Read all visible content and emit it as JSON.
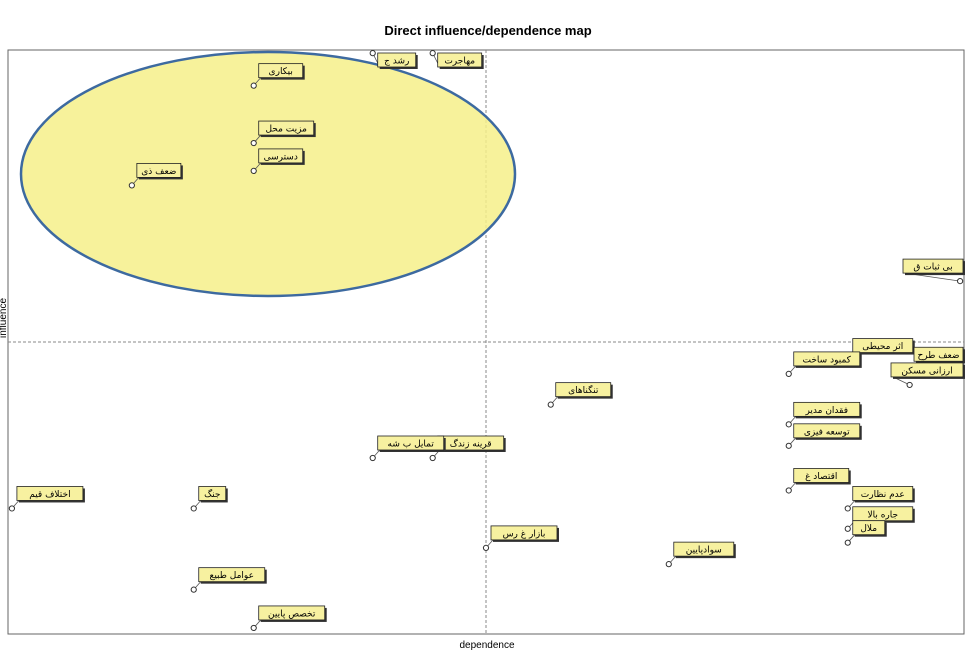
{
  "chart_data": {
    "type": "scatter",
    "title": "Direct influence/dependence map",
    "xlabel": "dependence",
    "ylabel": "influence",
    "xlim": [
      0,
      100
    ],
    "ylim": [
      0,
      100
    ],
    "x_divider": 50,
    "y_divider": 50,
    "grid": false,
    "highlight": {
      "shape": "ellipse",
      "fill": "#f6f08a",
      "stroke": "#3d6aa0",
      "quadrant": "top-left"
    },
    "points": [
      {
        "label": "مهاجرت",
        "x": 44.4,
        "y": 99.8
      },
      {
        "label": "رشد ج",
        "x": 38.1,
        "y": 99.8
      },
      {
        "label": "بیکاری",
        "x": 25.6,
        "y": 94.2
      },
      {
        "label": "مزیت محل",
        "x": 25.6,
        "y": 84.3
      },
      {
        "label": "دسترسی",
        "x": 25.6,
        "y": 79.5
      },
      {
        "label": "ضعف ذی",
        "x": 12.8,
        "y": 77.0
      },
      {
        "label": "بی ثبات ق",
        "x": 99.8,
        "y": 60.5
      },
      {
        "label": "اثر محیطی",
        "x": 88.0,
        "y": 46.8
      },
      {
        "label": "ضعف طرح",
        "x": 99.8,
        "y": 45.3
      },
      {
        "label": "کمبود ساخت",
        "x": 81.8,
        "y": 44.5
      },
      {
        "label": "ارزانی مسکن",
        "x": 94.5,
        "y": 42.6
      },
      {
        "label": "تنگناهای",
        "x": 56.8,
        "y": 39.2
      },
      {
        "label": "فقدان مدیر",
        "x": 81.8,
        "y": 35.8
      },
      {
        "label": "توسعه فیزی",
        "x": 81.8,
        "y": 32.1
      },
      {
        "label": "قرینه زندگ",
        "x": 44.4,
        "y": 30.0
      },
      {
        "label": "تمایل ب شه",
        "x": 38.1,
        "y": 30.0
      },
      {
        "label": "اقتصاد غ",
        "x": 81.8,
        "y": 24.4
      },
      {
        "label": "عدم نظارت",
        "x": 88.0,
        "y": 21.3
      },
      {
        "label": "اختلاف قیم",
        "x": 0.2,
        "y": 21.3
      },
      {
        "label": "جنگ",
        "x": 19.3,
        "y": 21.3
      },
      {
        "label": "جاره بالا",
        "x": 88.0,
        "y": 17.8
      },
      {
        "label": "ملال",
        "x": 88.0,
        "y": 15.4
      },
      {
        "label": "بازار غ رس",
        "x": 50.0,
        "y": 14.5
      },
      {
        "label": "سوادپایین",
        "x": 69.2,
        "y": 11.7
      },
      {
        "label": "عوامل طبیع",
        "x": 19.3,
        "y": 7.3
      },
      {
        "label": "تخصص پایین",
        "x": 25.6,
        "y": 0.7
      }
    ]
  }
}
